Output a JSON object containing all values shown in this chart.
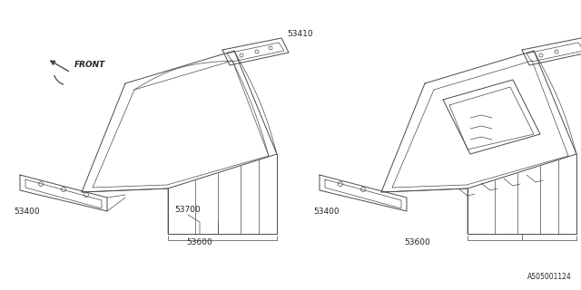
{
  "bg_color": "#ffffff",
  "line_color": "#4a4a4a",
  "text_color": "#222222",
  "diagram_id": "A505001124",
  "lw": 0.7,
  "lw_thin": 0.5,
  "label_fs": 6.5,
  "arrow_fs": 6.5
}
